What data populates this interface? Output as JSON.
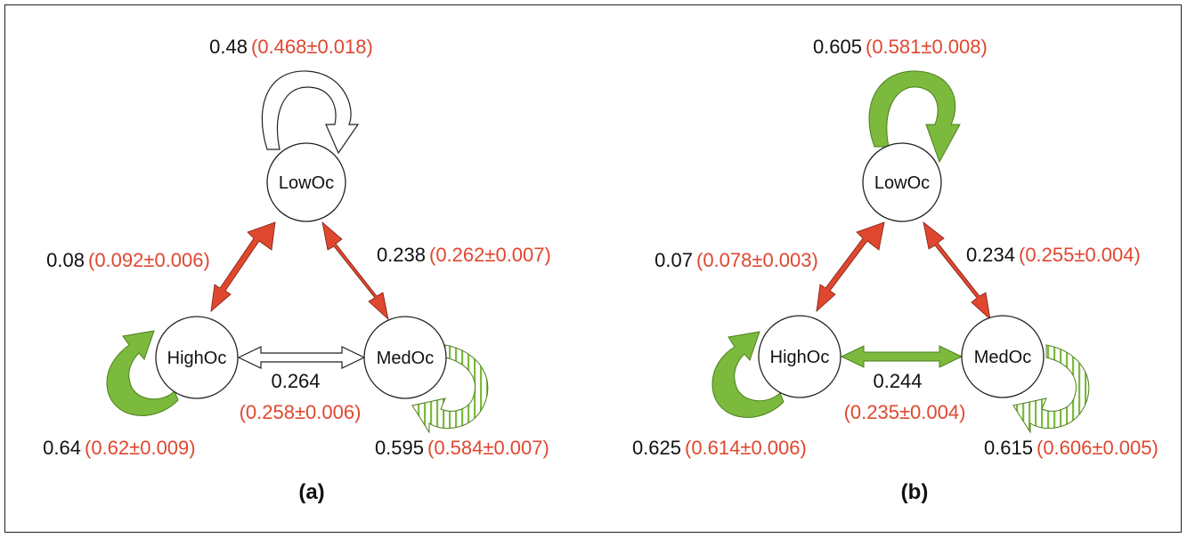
{
  "colors": {
    "red": "#e0472f",
    "green": "#7cba3d",
    "text": "#111111"
  },
  "panels": [
    {
      "label": "(a)",
      "nodes": {
        "low": "LowOc",
        "high": "HighOc",
        "med": "MedOc"
      },
      "self_low": {
        "value": "0.48",
        "ci": "(0.468±0.018)"
      },
      "self_high": {
        "value": "0.64",
        "ci": "(0.62±0.009)"
      },
      "self_med": {
        "value": "0.595",
        "ci": "(0.584±0.007)"
      },
      "edge_low_high": {
        "value": "0.08",
        "ci": "(0.092±0.006)"
      },
      "edge_low_med": {
        "value": "0.238",
        "ci": "(0.262±0.007)"
      },
      "edge_high_med": {
        "value": "0.264",
        "ci": "(0.258±0.006)"
      }
    },
    {
      "label": "(b)",
      "nodes": {
        "low": "LowOc",
        "high": "HighOc",
        "med": "MedOc"
      },
      "self_low": {
        "value": "0.605",
        "ci": "(0.581±0.008)"
      },
      "self_high": {
        "value": "0.625",
        "ci": "(0.614±0.006)"
      },
      "self_med": {
        "value": "0.615",
        "ci": "(0.606±0.005)"
      },
      "edge_low_high": {
        "value": "0.07",
        "ci": "(0.078±0.003)"
      },
      "edge_low_med": {
        "value": "0.234",
        "ci": "(0.255±0.004)"
      },
      "edge_high_med": {
        "value": "0.244",
        "ci": "(0.235±0.004)"
      }
    }
  ]
}
